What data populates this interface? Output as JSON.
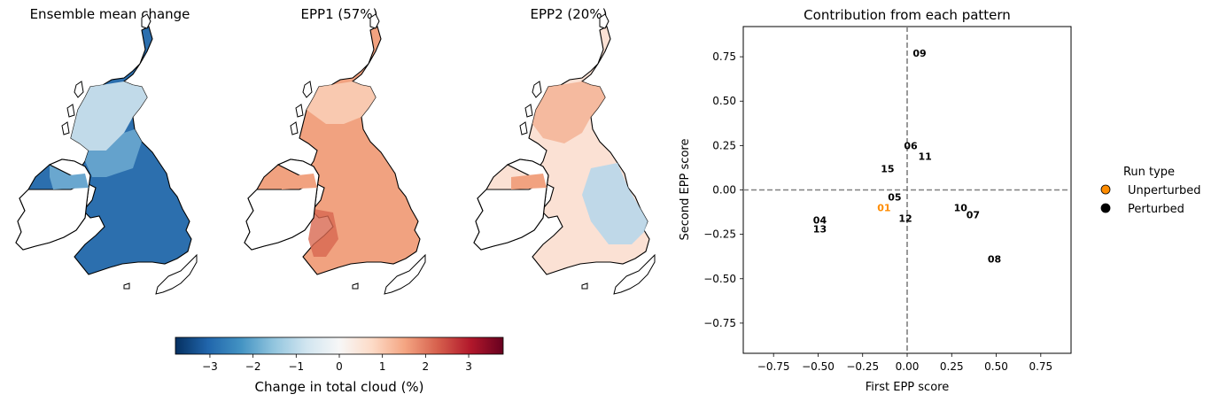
{
  "maps": {
    "titles": [
      "Ensemble mean change",
      "EPP1 (57%)",
      "EPP2 (20%)"
    ],
    "colorbar": {
      "label": "Change in total cloud (%)",
      "ticks": [
        "−3",
        "−2",
        "−1",
        "0",
        "1",
        "2",
        "3"
      ],
      "range": [
        -3.8,
        3.8
      ],
      "colormap": "RdBu_r",
      "colors": [
        "#053061",
        "#2166ac",
        "#4393c3",
        "#92c5de",
        "#d1e5f0",
        "#f7f7f7",
        "#fddbc7",
        "#f4a582",
        "#d6604d",
        "#b2182b",
        "#67001f"
      ]
    }
  },
  "chart_data": {
    "type": "scatter",
    "title": "Contribution from each pattern",
    "xlabel": "First EPP score",
    "ylabel": "Second EPP score",
    "xlim": [
      -0.92,
      0.92
    ],
    "ylim": [
      -0.92,
      0.92
    ],
    "xticks": [
      -0.75,
      -0.5,
      -0.25,
      0.0,
      0.25,
      0.5,
      0.75
    ],
    "yticks": [
      -0.75,
      -0.5,
      -0.25,
      0.0,
      0.25,
      0.5,
      0.75
    ],
    "xtick_labels": [
      "−0.75",
      "−0.50",
      "−0.25",
      "0.00",
      "0.25",
      "0.50",
      "0.75"
    ],
    "ytick_labels": [
      "−0.75",
      "−0.50",
      "−0.25",
      "0.00",
      "0.25",
      "0.50",
      "0.75"
    ],
    "reference_lines": {
      "x": 0.0,
      "y": 0.0,
      "style": "dashed",
      "color": "#808080"
    },
    "legend": {
      "title": "Run type",
      "placement": "right",
      "entries": [
        {
          "label": "Unperturbed",
          "color": "#ff8c00"
        },
        {
          "label": "Perturbed",
          "color": "#000000"
        }
      ]
    },
    "points": [
      {
        "label": "01",
        "x": -0.13,
        "y": -0.1,
        "type": "Unperturbed"
      },
      {
        "label": "04",
        "x": -0.49,
        "y": -0.17,
        "type": "Perturbed"
      },
      {
        "label": "05",
        "x": -0.07,
        "y": -0.04,
        "type": "Perturbed"
      },
      {
        "label": "06",
        "x": 0.02,
        "y": 0.25,
        "type": "Perturbed"
      },
      {
        "label": "07",
        "x": 0.37,
        "y": -0.14,
        "type": "Perturbed"
      },
      {
        "label": "08",
        "x": 0.49,
        "y": -0.39,
        "type": "Perturbed"
      },
      {
        "label": "09",
        "x": 0.07,
        "y": 0.77,
        "type": "Perturbed"
      },
      {
        "label": "10",
        "x": 0.3,
        "y": -0.1,
        "type": "Perturbed"
      },
      {
        "label": "11",
        "x": 0.1,
        "y": 0.19,
        "type": "Perturbed"
      },
      {
        "label": "12",
        "x": -0.01,
        "y": -0.16,
        "type": "Perturbed"
      },
      {
        "label": "13",
        "x": -0.49,
        "y": -0.22,
        "type": "Perturbed"
      },
      {
        "label": "15",
        "x": -0.11,
        "y": 0.12,
        "type": "Perturbed"
      }
    ]
  }
}
